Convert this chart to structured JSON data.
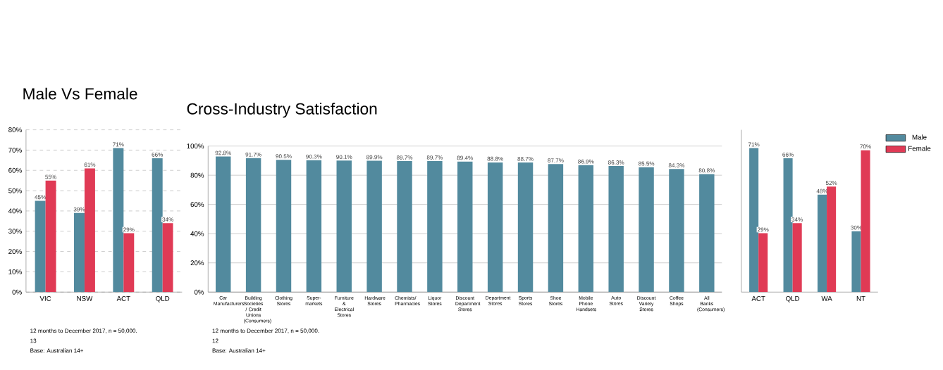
{
  "chart_data": [
    {
      "type": "bar",
      "title": "Male Vs Female",
      "categories": [
        "VIC",
        "NSW",
        "ACT",
        "QLD"
      ],
      "series": [
        {
          "color": "#528a9e",
          "values": [
            45,
            39,
            71,
            66
          ],
          "value_labels": [
            "45%",
            "39%",
            "71%",
            "66%"
          ]
        },
        {
          "color": "#e03a55",
          "values": [
            55,
            61,
            29,
            34
          ],
          "value_labels": [
            "55%",
            "61%",
            "29%",
            "34%"
          ]
        }
      ],
      "ylim": [
        0,
        80
      ],
      "yticks": [
        {
          "value": 0,
          "label": "0%"
        },
        {
          "value": 10,
          "label": "10%"
        },
        {
          "value": 20,
          "label": "20%"
        },
        {
          "value": 30,
          "label": "30%"
        },
        {
          "value": 40,
          "label": "40%"
        },
        {
          "value": 50,
          "label": "50%"
        },
        {
          "value": 60,
          "label": "60%"
        },
        {
          "value": 70,
          "label": "70%"
        },
        {
          "value": 80,
          "label": "80%"
        }
      ],
      "grid": "y",
      "line_style": "dashed",
      "annotations": [
        "12 months to December 2017, n = 50,000.",
        "13",
        "Base: Australian 14+"
      ]
    },
    {
      "type": "bar",
      "title": "Cross-Industry Satisfaction",
      "categories": [
        "Car Manufacturers",
        "Building Societies / Credit Unions (Consumers)",
        "Clothing Stores",
        "Super-markets",
        "Furniture & Electrical Stores",
        "Hardware Stores",
        "Chemists/ Pharmacies",
        "Liquor Stores",
        "Discount Department Stores",
        "Department Stores",
        "Sports Stores",
        "Shoe Stores",
        "Mobile Phone Handsets",
        "Auto Stores",
        "Discount Variety Stores",
        "Coffee Shops",
        "All Banks (Consumers)"
      ],
      "values": [
        92.8,
        91.7,
        90.5,
        90.3,
        90.1,
        89.9,
        89.7,
        89.7,
        89.4,
        88.8,
        88.7,
        87.7,
        86.9,
        86.3,
        85.5,
        84.3,
        80.8
      ],
      "value_labels": [
        "92.8%",
        "91.7%",
        "90.5%",
        "90.3%",
        "90.1%",
        "89.9%",
        "89.7%",
        "89.7%",
        "89.4%",
        "88.8%",
        "88.7%",
        "87.7%",
        "86.9%",
        "86.3%",
        "85.5%",
        "84.3%",
        "80.8%"
      ],
      "color": "#528a9e",
      "ylim": [
        0,
        100
      ],
      "yticks": [
        {
          "value": 0,
          "label": "0%"
        },
        {
          "value": 20,
          "label": "20%"
        },
        {
          "value": 40,
          "label": "40%"
        },
        {
          "value": 60,
          "label": "60%"
        },
        {
          "value": 80,
          "label": "80%"
        },
        {
          "value": 100,
          "label": "100%"
        }
      ],
      "grid": "y",
      "annotations": [
        "12 months to December 2017, n = 50,000.",
        "12",
        "Base: Australian 14+"
      ]
    },
    {
      "type": "bar",
      "categories": [
        "ACT",
        "QLD",
        "WA",
        "NT"
      ],
      "series": [
        {
          "name": "Male",
          "color": "#528a9e",
          "values": [
            71,
            66,
            48,
            30
          ],
          "value_labels": [
            "71%",
            "66%",
            "48%",
            "30%"
          ]
        },
        {
          "name": "Female",
          "color": "#e03a55",
          "values": [
            29,
            34,
            52,
            70
          ],
          "value_labels": [
            "29%",
            "34%",
            "52%",
            "70%"
          ]
        }
      ],
      "ylim": [
        0,
        80
      ],
      "tick_labels": "x",
      "grid": "y",
      "line_style": "dashed",
      "legend": "right"
    }
  ]
}
